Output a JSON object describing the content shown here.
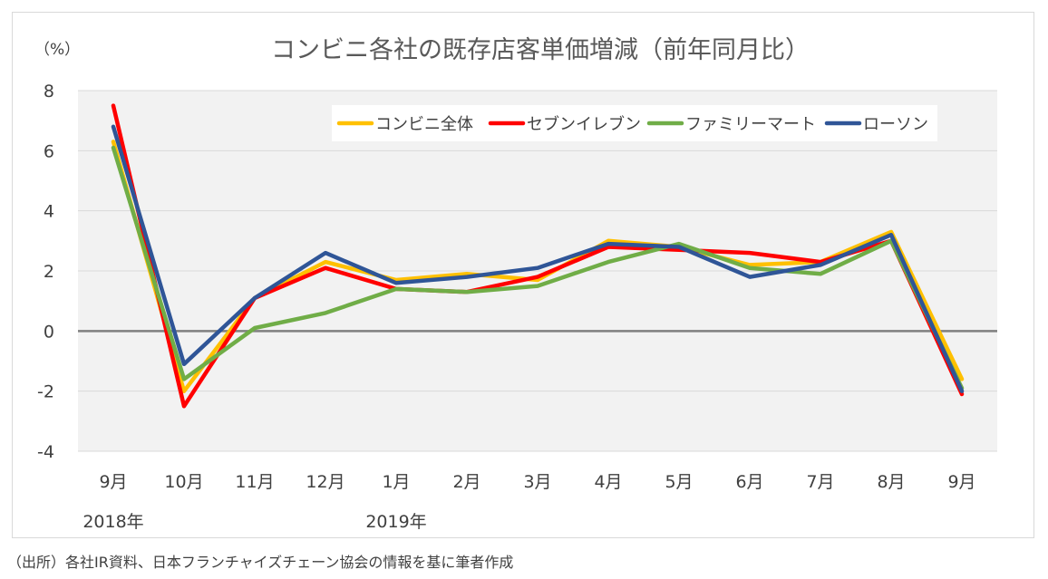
{
  "chart_data": {
    "type": "line",
    "title": "コンビニ各社の既存店客単価増減（前年同月比）",
    "ylabel": "（%）",
    "xlabel": "",
    "ylim": [
      -4,
      8
    ],
    "yticks": [
      8,
      6,
      4,
      2,
      0,
      -2,
      -4
    ],
    "categories": [
      "9月",
      "10月",
      "11月",
      "12月",
      "1月",
      "2月",
      "3月",
      "4月",
      "5月",
      "6月",
      "7月",
      "8月",
      "9月"
    ],
    "year_labels": [
      {
        "category_index": 0,
        "label": "2018年"
      },
      {
        "category_index": 4,
        "label": "2019年"
      }
    ],
    "grid": true,
    "legend_position": "top-right",
    "series": [
      {
        "name": "コンビニ全体",
        "color": "#ffc000",
        "values": [
          6.3,
          -2.0,
          1.1,
          2.3,
          1.7,
          1.9,
          1.7,
          3.0,
          2.8,
          2.2,
          2.3,
          3.3,
          -1.6
        ]
      },
      {
        "name": "セブンイレブン",
        "color": "#ff0000",
        "values": [
          7.5,
          -2.5,
          1.1,
          2.1,
          1.4,
          1.3,
          1.8,
          2.8,
          2.7,
          2.6,
          2.3,
          3.0,
          -2.1
        ]
      },
      {
        "name": "ファミリーマート",
        "color": "#70ad47",
        "values": [
          6.1,
          -1.6,
          0.1,
          0.6,
          1.4,
          1.3,
          1.5,
          2.3,
          2.9,
          2.1,
          1.9,
          3.0,
          -1.9
        ]
      },
      {
        "name": "ローソン",
        "color": "#2f5597",
        "values": [
          6.8,
          -1.1,
          1.1,
          2.6,
          1.6,
          1.8,
          2.1,
          2.9,
          2.8,
          1.8,
          2.2,
          3.2,
          -2.0
        ]
      }
    ]
  },
  "source_note": "（出所）各社IR資料、日本フランチャイズチェーン協会の情報を基に筆者作成"
}
